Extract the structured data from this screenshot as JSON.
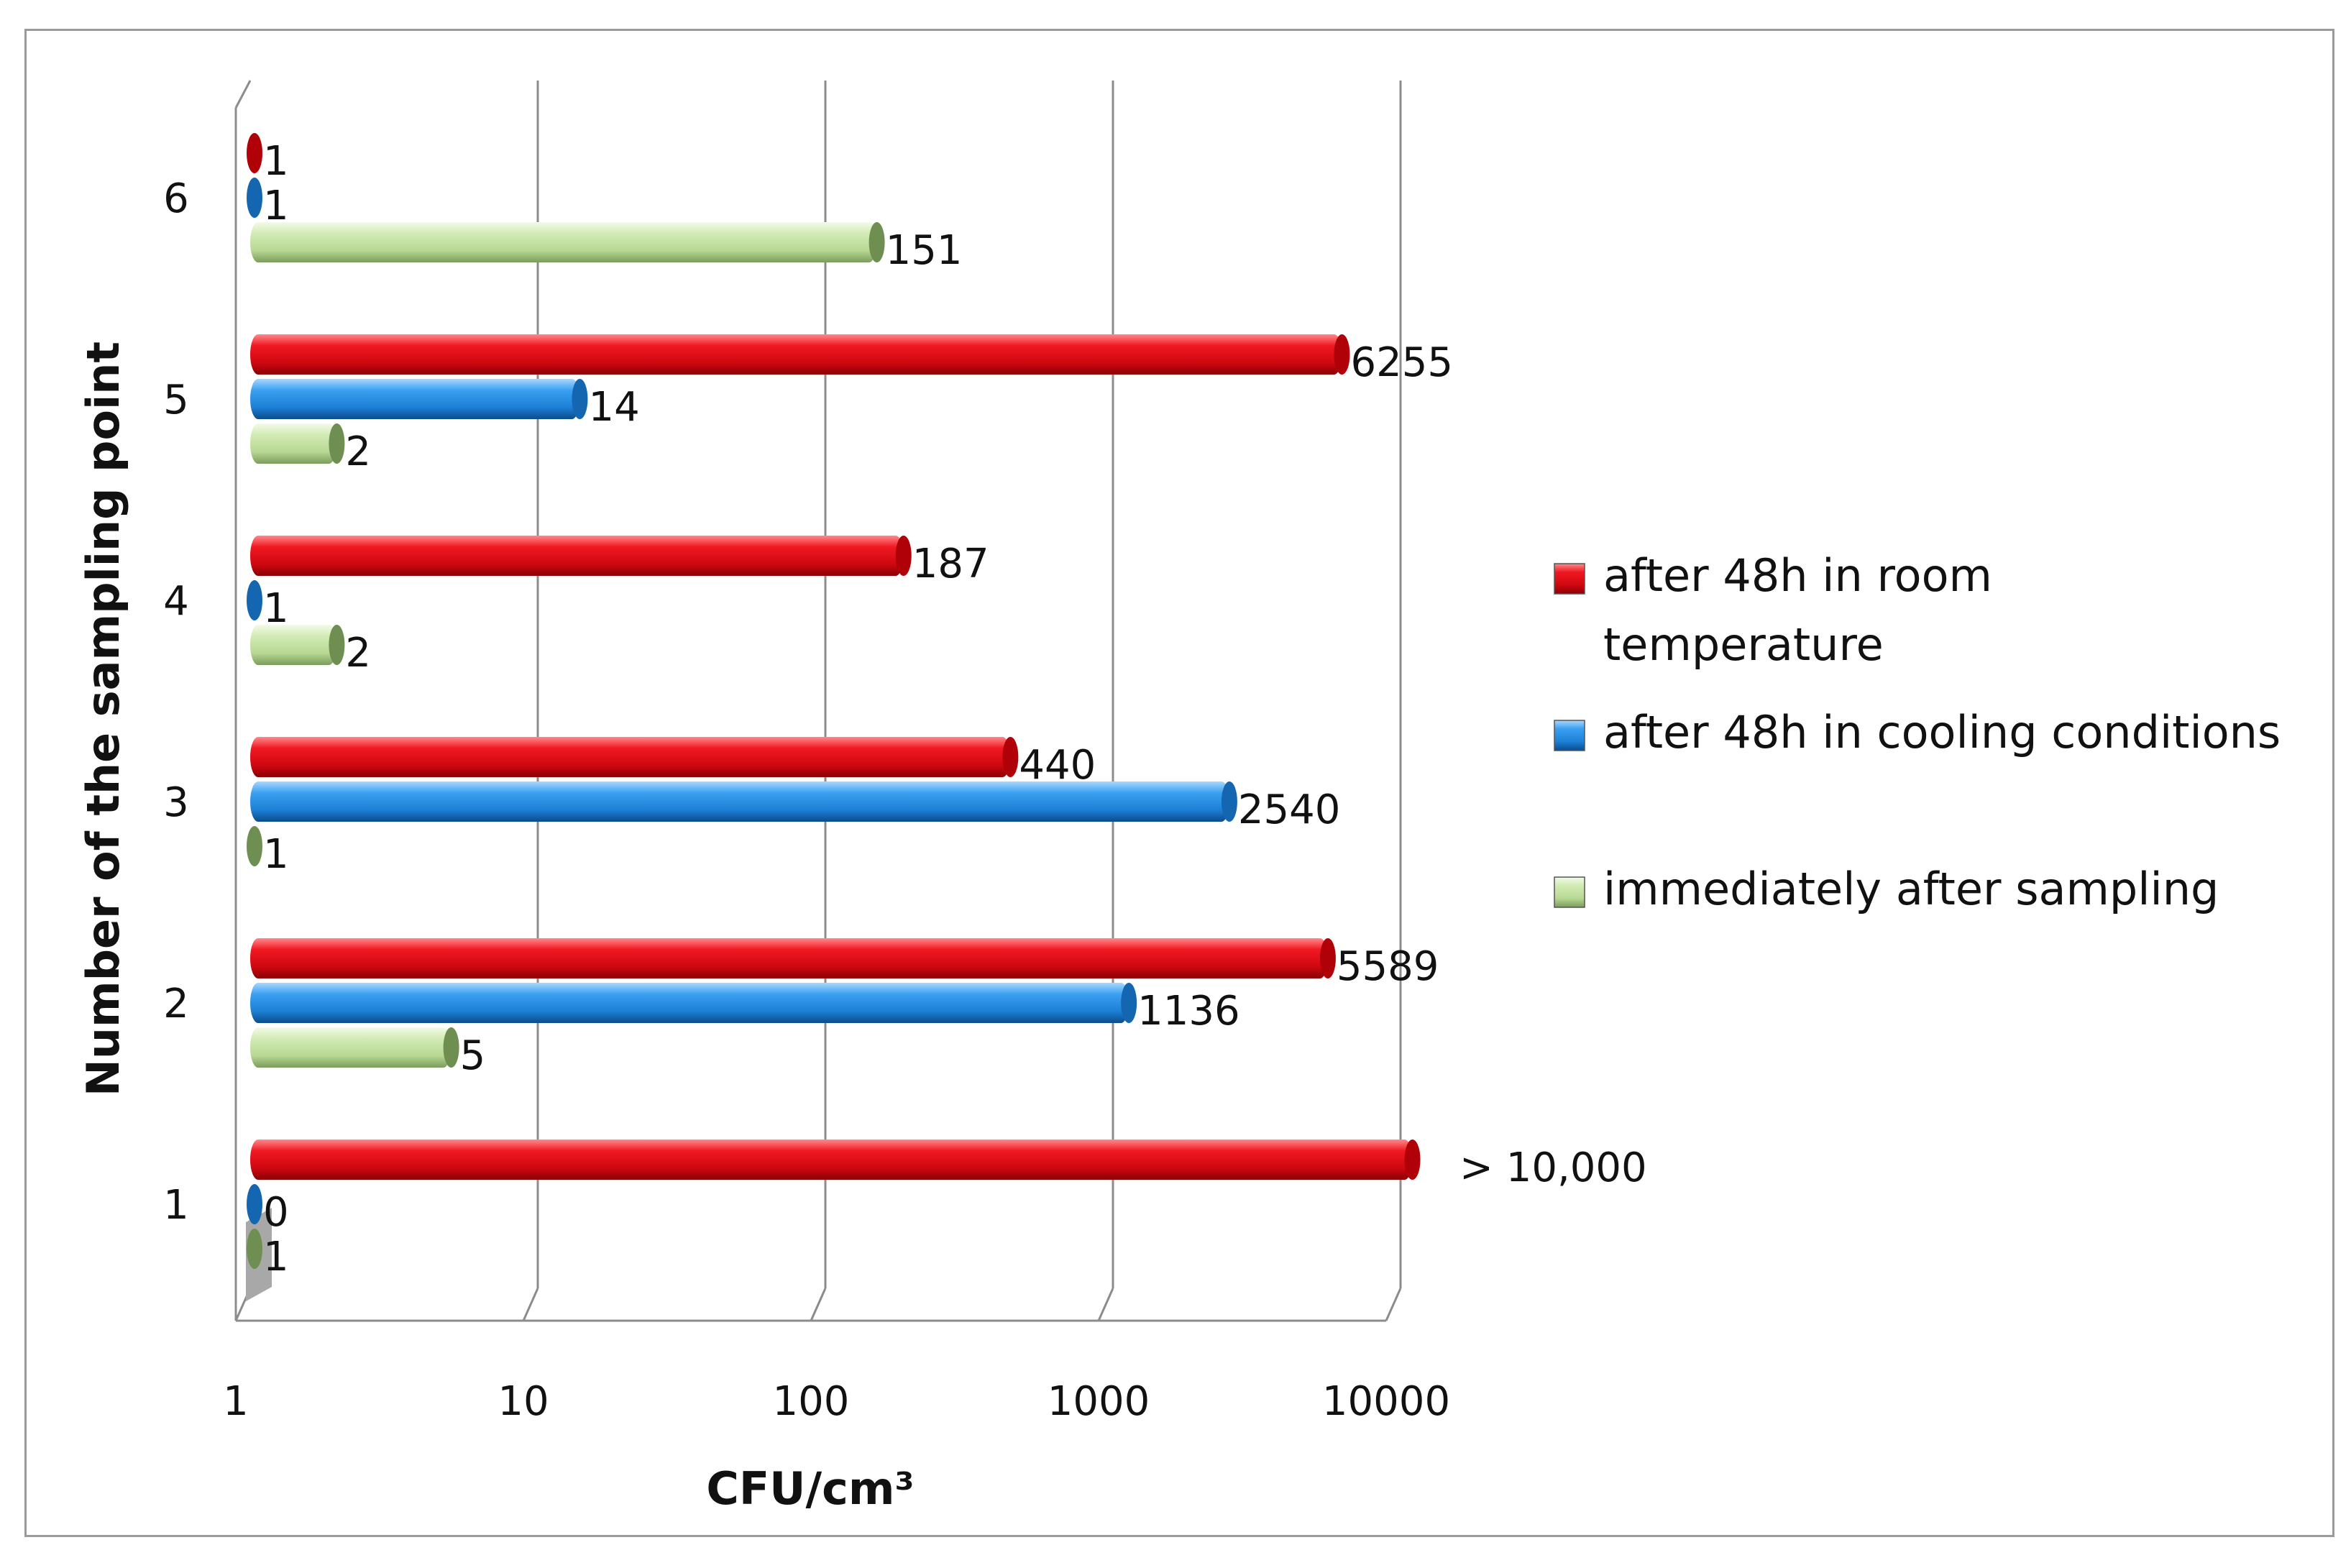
{
  "chart_data": {
    "type": "bar",
    "orientation": "horizontal",
    "style": "3d-cylinder",
    "xscale": "log",
    "xlim": [
      1,
      10000
    ],
    "xticks": [
      "1",
      "10",
      "100",
      "1000",
      "10000"
    ],
    "xlabel": "CFU/cm³",
    "ylabel": "Number of the sampling point",
    "categories": [
      "1",
      "2",
      "3",
      "4",
      "5",
      "6"
    ],
    "grid": "vertical",
    "legend_position": "right",
    "series": [
      {
        "name": "after 48h in room temperature",
        "color": "#e0101a",
        "values": [
          11000,
          5589,
          440,
          187,
          6255,
          1
        ],
        "labels": [
          "> 10,000",
          "5589",
          "440",
          "187",
          "6255",
          "1"
        ]
      },
      {
        "name": "after 48h in cooling conditions",
        "color": "#2a8fe0",
        "values": [
          0,
          1136,
          2540,
          1,
          14,
          1
        ],
        "labels": [
          "0",
          "1136",
          "2540",
          "1",
          "14",
          "1"
        ]
      },
      {
        "name": "immediately after sampling",
        "color": "#c4e0a2",
        "values": [
          1,
          5,
          1,
          2,
          2,
          151
        ],
        "labels": [
          "1",
          "5",
          "1",
          "2",
          "2",
          "151"
        ]
      }
    ]
  }
}
